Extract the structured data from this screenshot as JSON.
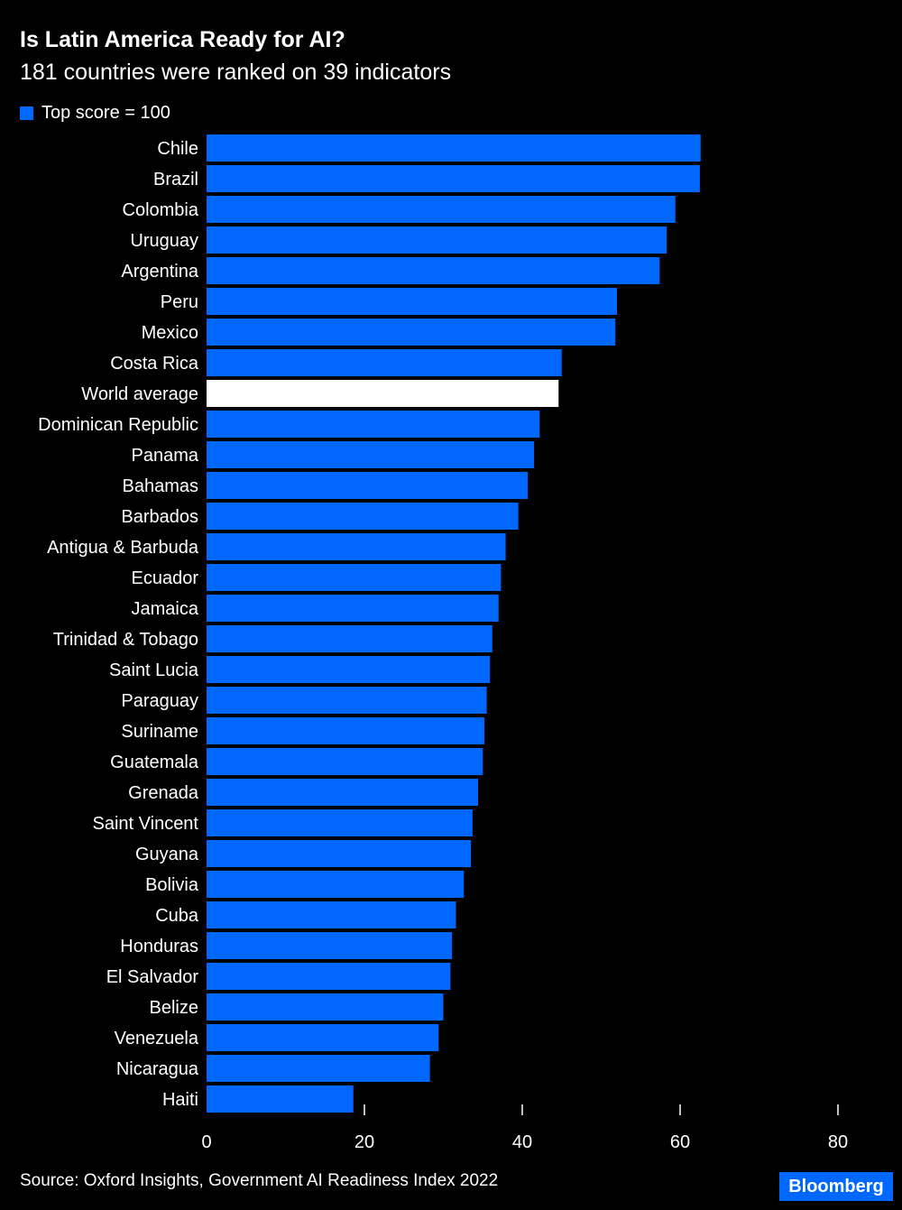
{
  "title": "Is Latin America Ready for AI?",
  "subtitle": "181 countries were ranked on 39 indicators",
  "legend": {
    "label": "Top score = 100",
    "color": "#0068ff"
  },
  "source": "Source: Oxford Insights, Government AI Readiness Index 2022",
  "brand": "Bloomberg",
  "colors": {
    "bar": "#0068ff",
    "highlight": "#ffffff",
    "background": "#000000",
    "text": "#ffffff"
  },
  "chart_data": {
    "type": "bar",
    "orientation": "horizontal",
    "highlight_category": "World average",
    "categories": [
      "Chile",
      "Brazil",
      "Colombia",
      "Uruguay",
      "Argentina",
      "Peru",
      "Mexico",
      "Costa Rica",
      "World average",
      "Dominican Republic",
      "Panama",
      "Bahamas",
      "Barbados",
      "Antigua & Barbuda",
      "Ecuador",
      "Jamaica",
      "Trinidad & Tobago",
      "Saint Lucia",
      "Paraguay",
      "Suriname",
      "Guatemala",
      "Grenada",
      "Saint Vincent",
      "Guyana",
      "Bolivia",
      "Cuba",
      "Honduras",
      "El Salvador",
      "Belize",
      "Venezuela",
      "Nicaragua",
      "Haiti"
    ],
    "values": [
      62.6,
      62.5,
      59.4,
      58.3,
      57.4,
      52.0,
      51.8,
      45.0,
      44.6,
      42.2,
      41.5,
      40.7,
      39.5,
      37.9,
      37.3,
      37.0,
      36.2,
      35.9,
      35.5,
      35.2,
      35.0,
      34.4,
      33.7,
      33.5,
      32.6,
      31.6,
      31.1,
      30.9,
      30.0,
      29.4,
      28.3,
      18.6
    ],
    "xlim": [
      0,
      80
    ],
    "xticks": [
      0,
      20,
      40,
      60,
      80
    ],
    "grid": false
  }
}
